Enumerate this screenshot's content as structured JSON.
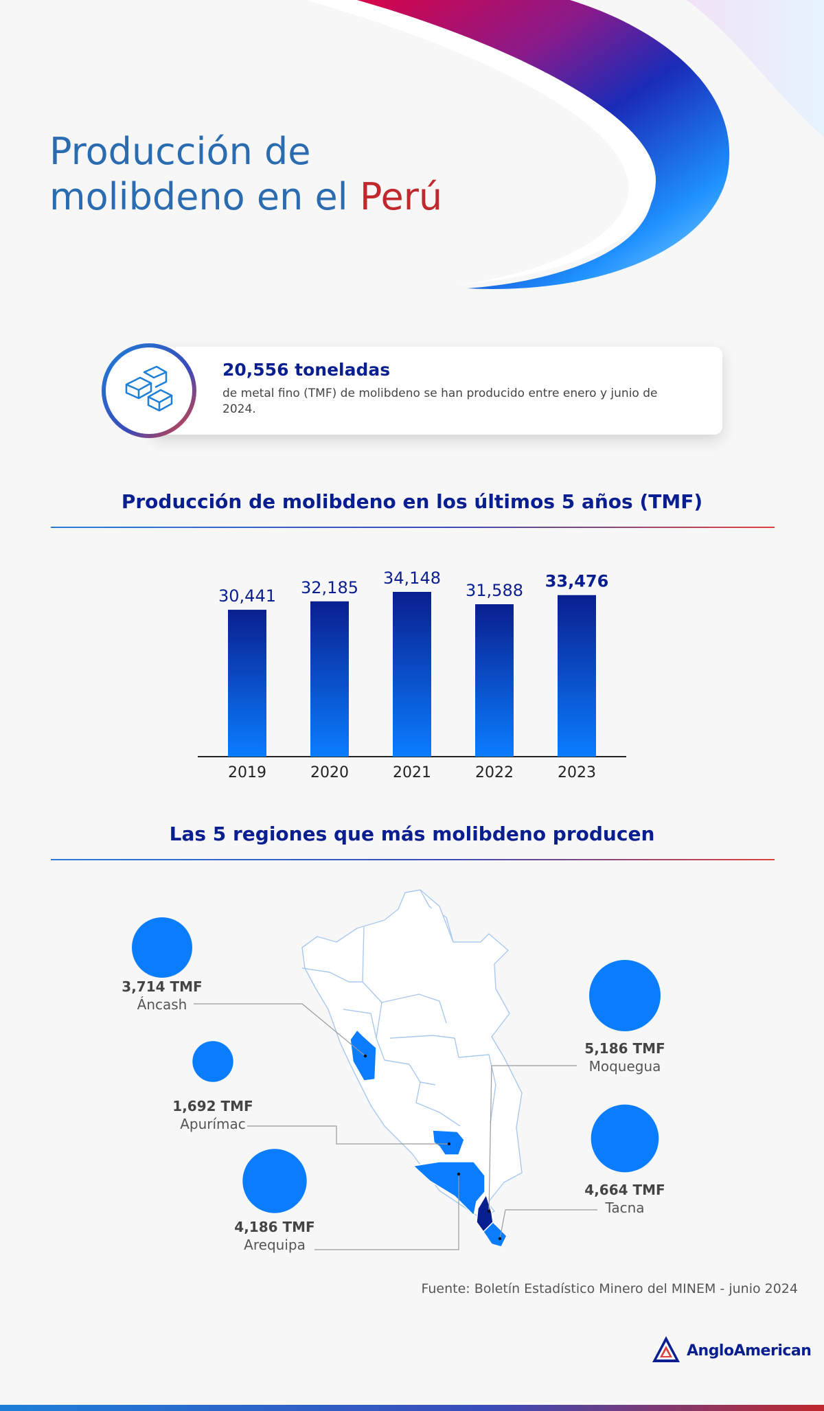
{
  "title": {
    "line1": "Producción de",
    "line2_pre": "molibdeno en el ",
    "line2_accent": "Perú"
  },
  "stat": {
    "number": "20,556 toneladas",
    "text": "de metal fino (TMF) de molibdeno se han producido entre enero y junio de 2024."
  },
  "chart_section_title": "Producción de molibdeno en los últimos 5 años (TMF)",
  "regions_section_title": "Las 5 regiones que más molibdeno producen",
  "chart_data": [
    {
      "type": "bar",
      "title": "Producción de molibdeno en los últimos 5 años (TMF)",
      "categories": [
        "2019",
        "2020",
        "2021",
        "2022",
        "2023"
      ],
      "values": [
        30441,
        32185,
        34148,
        31588,
        33476
      ],
      "value_labels": [
        "30,441",
        "32,185",
        "34,148",
        "31,588",
        "33,476"
      ],
      "highlight_index": 4,
      "xlabel": "",
      "ylabel": "",
      "ylim": [
        0,
        34148
      ],
      "grid": false,
      "bar_color_top": "#0a1f8f",
      "bar_color_bottom": "#0a7dff"
    },
    {
      "type": "bubble",
      "title": "Las 5 regiones que más molibdeno producen",
      "regions": [
        {
          "name": "Áncash",
          "value": 3714,
          "label": "3,714 TMF"
        },
        {
          "name": "Apurímac",
          "value": 1692,
          "label": "1,692 TMF"
        },
        {
          "name": "Arequipa",
          "value": 4186,
          "label": "4,186 TMF"
        },
        {
          "name": "Moquegua",
          "value": 5186,
          "label": "5,186 TMF"
        },
        {
          "name": "Tacna",
          "value": 4664,
          "label": "4,664 TMF"
        }
      ],
      "bubble_color": "#0a7dff"
    }
  ],
  "source": "Fuente: Boletín Estadístico Minero del MINEM - junio 2024",
  "logo": {
    "text": "AngloAmerican",
    "icon": "anglo-american-logo-icon"
  },
  "colors": {
    "navy": "#0a1f8f",
    "blue": "#0a7dff",
    "red": "#c0282d",
    "title_blue": "#2b6cb0"
  }
}
